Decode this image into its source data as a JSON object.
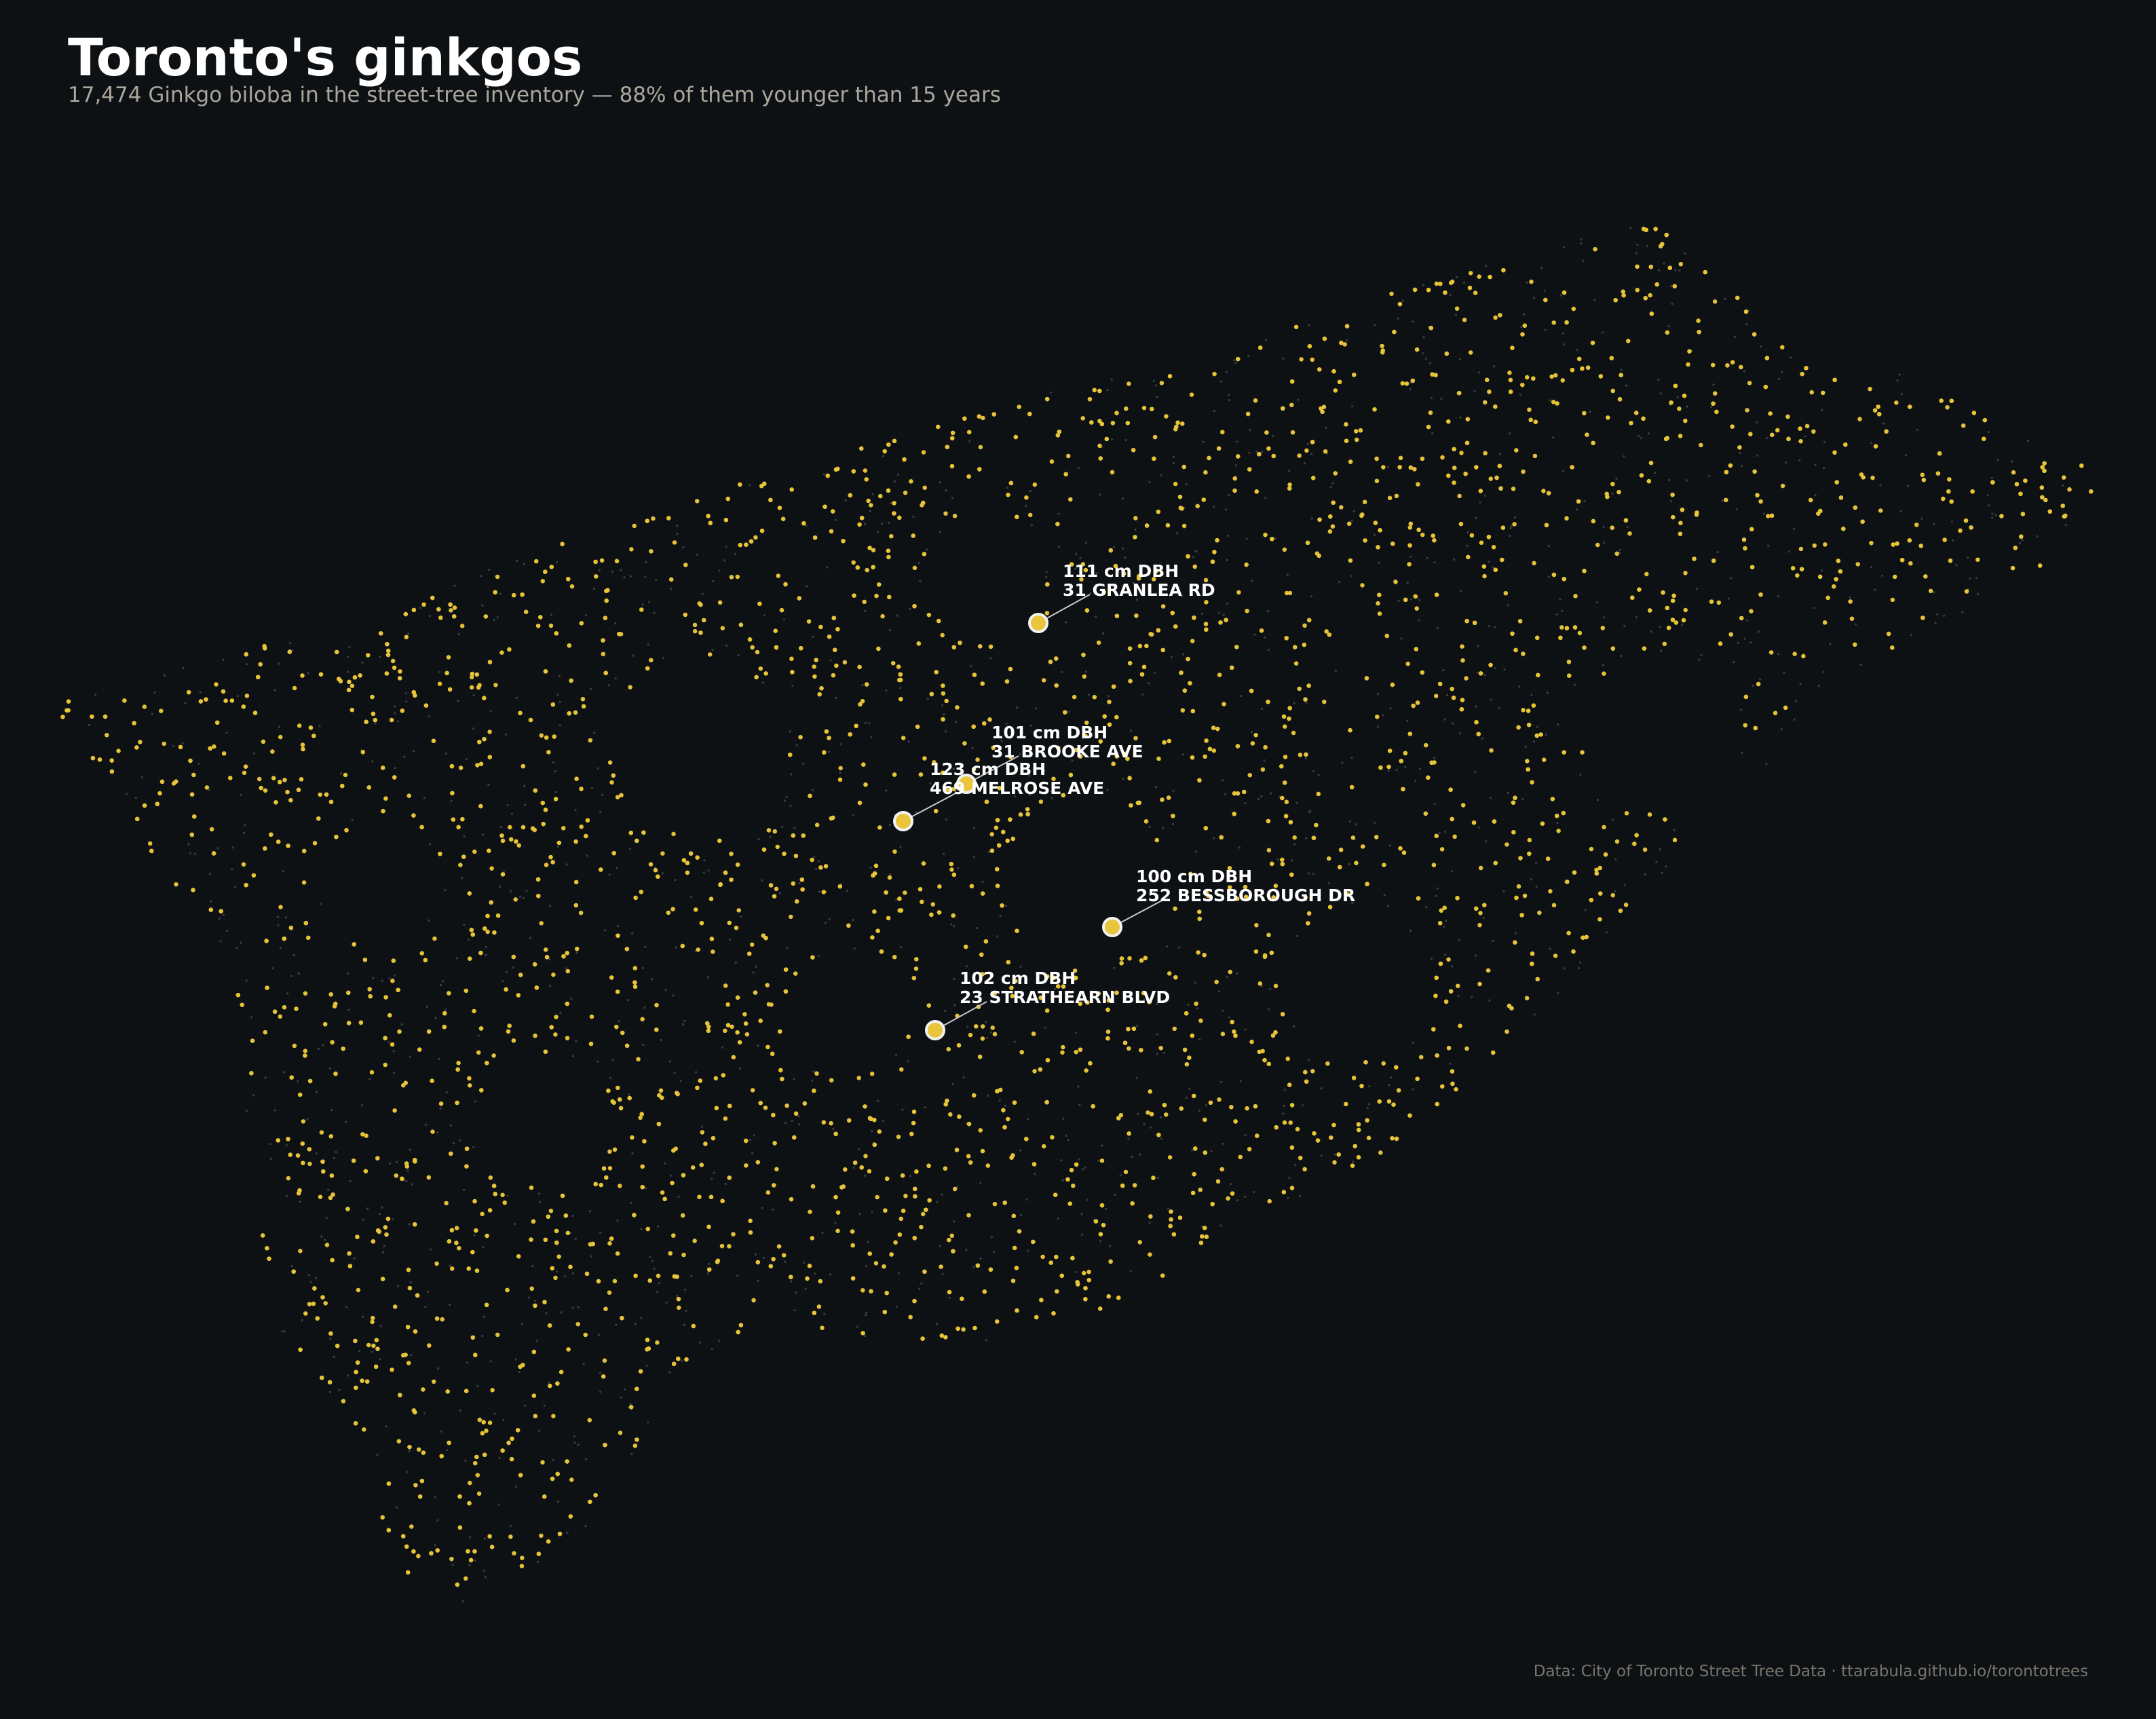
{
  "header": {
    "title": "Toronto's ginkgos",
    "subtitle": "17,474 Ginkgo biloba in the street-tree inventory — 88% of them younger than 15 years"
  },
  "footer": {
    "credit": "Data: City of Toronto Street Tree Data  ·  ttarabula.github.io/torontotrees"
  },
  "colors": {
    "background": "#0e1114",
    "ginkgo": "#e8c53a",
    "other_trees": "#3a3d42",
    "highlight_stroke": "#f2f2f2",
    "label": "#ffffff"
  },
  "map": {
    "notable_trees": [
      {
        "dbh": "111 cm DBH",
        "address": "31 GRANLEA RD"
      },
      {
        "dbh": "101 cm DBH",
        "address": "31 BROOKE AVE"
      },
      {
        "dbh": "123 cm DBH",
        "address": "469 MELROSE AVE"
      },
      {
        "dbh": "100 cm DBH",
        "address": "252 BESSBOROUGH DR"
      },
      {
        "dbh": "102 cm DBH",
        "address": "23 STRATHEARN BLVD"
      }
    ]
  }
}
